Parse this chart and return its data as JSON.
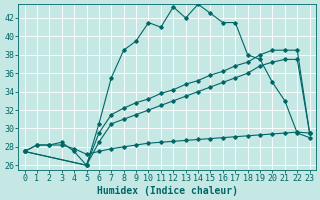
{
  "xlabel": "Humidex (Indice chaleur)",
  "bg_color": "#c5e8e5",
  "line_color": "#006666",
  "xlim": [
    -0.5,
    23.5
  ],
  "ylim": [
    25.5,
    43.5
  ],
  "yticks": [
    26,
    28,
    30,
    32,
    34,
    36,
    38,
    40,
    42
  ],
  "xticks": [
    0,
    1,
    2,
    3,
    4,
    5,
    6,
    7,
    8,
    9,
    10,
    11,
    12,
    13,
    14,
    15,
    16,
    17,
    18,
    19,
    20,
    21,
    22,
    23
  ],
  "line_flat_x": [
    0,
    1,
    2,
    3,
    4,
    5,
    6,
    7,
    8,
    9,
    10,
    11,
    12,
    13,
    14,
    15,
    16,
    17,
    18,
    19,
    20,
    21,
    22,
    23
  ],
  "line_flat_y": [
    27.5,
    28.2,
    28.2,
    28.2,
    27.8,
    27.2,
    27.5,
    27.8,
    28.0,
    28.2,
    28.4,
    28.5,
    28.6,
    28.7,
    28.8,
    28.9,
    29.0,
    29.1,
    29.2,
    29.3,
    29.4,
    29.5,
    29.6,
    29.5
  ],
  "line_diag1_x": [
    0,
    5,
    6,
    7,
    8,
    9,
    10,
    11,
    12,
    13,
    14,
    15,
    16,
    17,
    18,
    19,
    20,
    21,
    22,
    23
  ],
  "line_diag1_y": [
    27.5,
    26.0,
    28.5,
    30.5,
    31.0,
    31.5,
    32.0,
    32.5,
    33.0,
    33.5,
    34.0,
    34.5,
    35.0,
    35.5,
    36.0,
    36.8,
    37.2,
    37.5,
    37.5,
    29.5
  ],
  "line_diag2_x": [
    0,
    5,
    6,
    7,
    8,
    9,
    10,
    11,
    12,
    13,
    14,
    15,
    16,
    17,
    18,
    19,
    20,
    21,
    22,
    23
  ],
  "line_diag2_y": [
    27.5,
    26.0,
    29.5,
    31.5,
    32.2,
    32.8,
    33.2,
    33.8,
    34.2,
    34.8,
    35.2,
    35.8,
    36.2,
    36.8,
    37.2,
    38.0,
    38.5,
    38.5,
    38.5,
    29.5
  ],
  "line_peak_x": [
    0,
    1,
    2,
    3,
    4,
    5,
    6,
    7,
    8,
    9,
    10,
    11,
    12,
    13,
    14,
    15,
    16,
    17,
    18,
    19,
    20,
    21,
    22,
    23
  ],
  "line_peak_y": [
    27.5,
    28.2,
    28.2,
    28.5,
    27.5,
    26.0,
    30.5,
    35.5,
    38.5,
    39.5,
    41.5,
    41.0,
    43.2,
    42.0,
    43.5,
    42.5,
    41.5,
    41.5,
    38.0,
    37.5,
    35.0,
    33.0,
    29.5,
    29.0
  ],
  "fontsize_label": 7,
  "fontsize_tick": 6
}
